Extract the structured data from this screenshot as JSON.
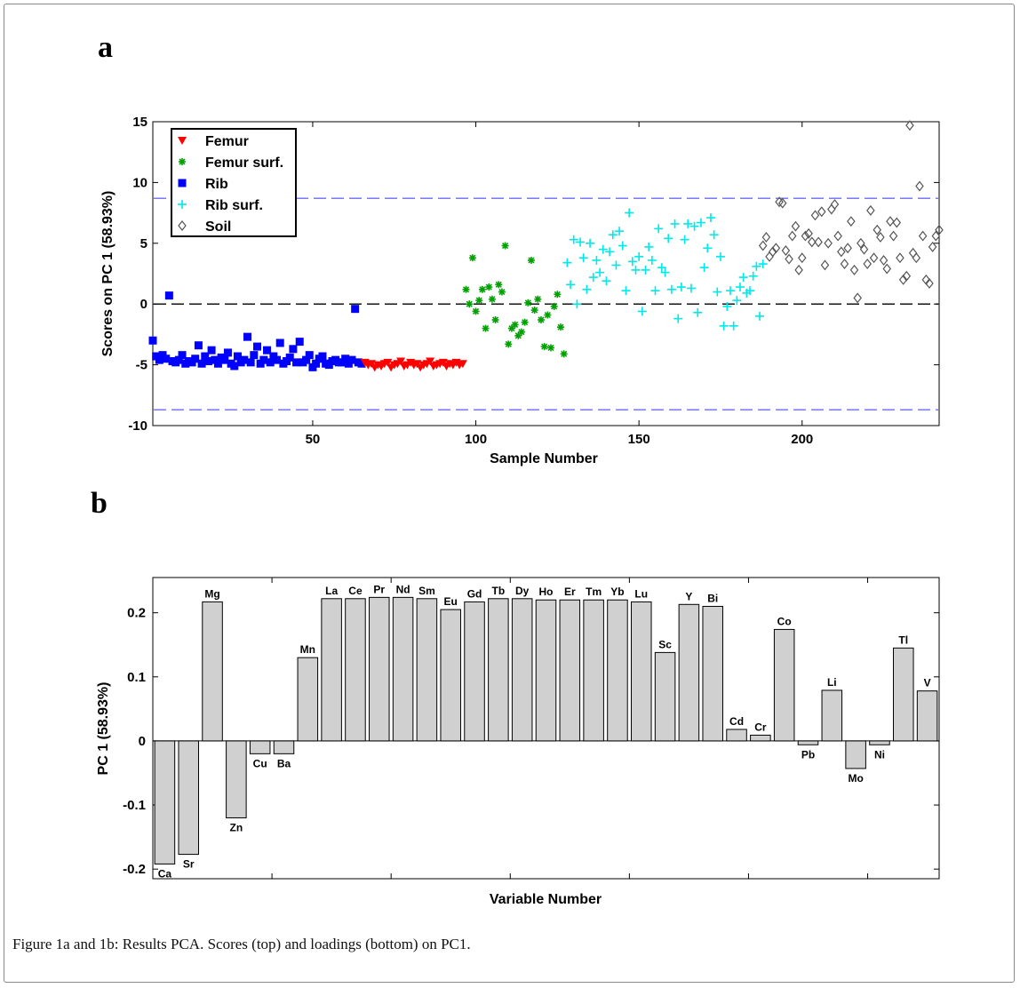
{
  "figure": {
    "caption": "Figure 1a and 1b: Results PCA. Scores (top) and loadings (bottom) on PC1."
  },
  "chart_data": [
    {
      "panel_label": "a",
      "type": "scatter",
      "xlabel": "Sample Number",
      "ylabel": "Scores on PC 1 (58.93%)",
      "xlim": [
        1,
        242
      ],
      "ylim": [
        -10,
        15
      ],
      "xticks": [
        50,
        100,
        150,
        200
      ],
      "yticks": [
        -10,
        -5,
        0,
        5,
        10,
        15
      ],
      "legend_position": "top-left",
      "reference_lines": [
        {
          "y": 8.7,
          "color": "#6a6aff",
          "style": "dashed"
        },
        {
          "y": -8.7,
          "color": "#6a6aff",
          "style": "dashed"
        },
        {
          "y": 0,
          "color": "#000000",
          "style": "dashed"
        }
      ],
      "series": [
        {
          "name": "Rib",
          "marker": "square",
          "color": "#0000ff",
          "x": [
            1,
            2,
            3,
            4,
            5,
            6,
            7,
            8,
            9,
            10,
            11,
            12,
            13,
            14,
            15,
            16,
            17,
            18,
            19,
            20,
            21,
            22,
            23,
            24,
            25,
            26,
            27,
            28,
            29,
            30,
            31,
            32,
            33,
            34,
            35,
            36,
            37,
            38,
            39,
            40,
            41,
            42,
            43,
            44,
            45,
            46,
            47,
            48,
            49,
            50,
            51,
            52,
            53,
            54,
            55,
            56,
            57,
            58,
            59,
            60,
            61,
            62,
            63,
            64,
            65
          ],
          "y": [
            -3.0,
            -4.3,
            -4.6,
            -4.2,
            -4.5,
            0.7,
            -4.7,
            -4.8,
            -4.6,
            -4.2,
            -4.9,
            -4.7,
            -4.8,
            -4.5,
            -3.4,
            -4.9,
            -4.3,
            -4.7,
            -3.8,
            -4.6,
            -4.9,
            -4.4,
            -4.6,
            -4.0,
            -4.9,
            -5.1,
            -4.3,
            -4.8,
            -4.6,
            -2.7,
            -4.8,
            -4.2,
            -3.5,
            -4.9,
            -4.6,
            -3.8,
            -4.8,
            -4.3,
            -4.6,
            -3.2,
            -4.9,
            -4.7,
            -4.4,
            -3.7,
            -4.8,
            -3.1,
            -4.8,
            -4.6,
            -4.2,
            -5.2,
            -4.9,
            -4.5,
            -4.3,
            -4.9,
            -5.0,
            -4.7,
            -4.6,
            -4.8,
            -4.8,
            -4.5,
            -4.9,
            -4.6,
            -0.4,
            -4.8,
            -4.9
          ]
        },
        {
          "name": "Femur",
          "marker": "triangle-down",
          "color": "#ff0000",
          "x": [
            66,
            67,
            68,
            69,
            70,
            71,
            72,
            73,
            74,
            75,
            76,
            77,
            78,
            79,
            80,
            81,
            82,
            83,
            84,
            85,
            86,
            87,
            88,
            89,
            90,
            91,
            92,
            93,
            94,
            95,
            96
          ],
          "y": [
            -4.8,
            -5.0,
            -4.9,
            -5.2,
            -5.0,
            -5.1,
            -4.9,
            -4.8,
            -5.2,
            -5.0,
            -4.9,
            -4.7,
            -5.1,
            -5.0,
            -4.8,
            -5.0,
            -4.9,
            -5.2,
            -5.0,
            -4.9,
            -4.7,
            -5.1,
            -5.0,
            -4.9,
            -4.8,
            -5.1,
            -4.9,
            -5.0,
            -4.8,
            -5.0,
            -4.9
          ]
        },
        {
          "name": "Femur surf.",
          "marker": "star",
          "color": "#00a000",
          "x": [
            97,
            98,
            99,
            100,
            101,
            102,
            103,
            104,
            105,
            106,
            107,
            108,
            109,
            110,
            111,
            112,
            113,
            114,
            115,
            116,
            117,
            118,
            119,
            120,
            121,
            122,
            123,
            124,
            125,
            126,
            127
          ],
          "y": [
            1.2,
            0.0,
            3.8,
            -0.6,
            0.3,
            1.2,
            -2.0,
            1.4,
            0.4,
            -1.3,
            1.6,
            1.0,
            4.8,
            -3.3,
            -2.0,
            -1.7,
            -2.6,
            -2.3,
            -1.5,
            0.1,
            3.6,
            -0.5,
            0.4,
            -1.3,
            -3.5,
            -0.9,
            -3.6,
            -0.2,
            0.8,
            -1.9,
            -4.1
          ]
        },
        {
          "name": "Rib surf.",
          "marker": "plus",
          "color": "#00e8e8",
          "x": [
            128,
            129,
            130,
            131,
            132,
            133,
            134,
            135,
            136,
            137,
            138,
            139,
            140,
            141,
            142,
            143,
            144,
            145,
            146,
            147,
            148,
            149,
            150,
            151,
            152,
            153,
            154,
            155,
            156,
            157,
            158,
            159,
            160,
            161,
            162,
            163,
            164,
            165,
            166,
            167,
            168,
            169,
            170,
            171,
            172,
            173,
            174,
            175,
            176,
            177,
            178,
            179,
            180,
            181,
            182,
            183,
            184,
            185,
            186,
            187,
            188
          ],
          "y": [
            3.4,
            1.6,
            5.3,
            0.0,
            5.1,
            3.8,
            1.2,
            5.0,
            2.2,
            3.6,
            2.6,
            4.5,
            1.9,
            4.3,
            5.7,
            3.2,
            6.0,
            4.8,
            1.1,
            7.5,
            3.5,
            2.8,
            3.9,
            -0.6,
            2.8,
            4.7,
            3.6,
            1.1,
            6.2,
            3.0,
            2.6,
            5.4,
            1.2,
            6.6,
            -1.2,
            1.4,
            5.3,
            6.6,
            1.3,
            6.4,
            -0.7,
            6.7,
            3.0,
            4.6,
            7.1,
            5.7,
            1.0,
            3.9,
            -1.8,
            -0.2,
            1.1,
            -1.8,
            0.3,
            1.4,
            2.2,
            0.9,
            1.1,
            2.3,
            3.1,
            -1.0,
            3.3
          ]
        },
        {
          "name": "Soil",
          "marker": "diamond-open",
          "color": "#555555",
          "x": [
            188,
            189,
            190,
            191,
            192,
            193,
            194,
            195,
            196,
            197,
            198,
            199,
            200,
            201,
            202,
            203,
            204,
            205,
            206,
            207,
            208,
            209,
            210,
            211,
            212,
            213,
            214,
            215,
            216,
            217,
            218,
            219,
            220,
            221,
            222,
            223,
            224,
            225,
            226,
            227,
            228,
            229,
            230,
            231,
            232,
            233,
            234,
            235,
            236,
            237,
            238,
            239,
            240,
            241,
            242
          ],
          "y": [
            4.8,
            5.5,
            3.9,
            4.3,
            4.6,
            8.4,
            8.3,
            4.4,
            3.7,
            5.6,
            6.4,
            2.8,
            3.8,
            5.6,
            5.8,
            5.1,
            7.3,
            5.1,
            7.6,
            3.2,
            5.0,
            7.8,
            8.2,
            5.6,
            4.3,
            3.3,
            4.6,
            6.8,
            2.8,
            0.5,
            5.0,
            4.5,
            3.3,
            7.7,
            3.8,
            6.1,
            5.5,
            3.6,
            2.9,
            6.8,
            5.6,
            6.7,
            3.8,
            2.0,
            2.3,
            14.7,
            4.2,
            3.8,
            9.7,
            5.6,
            2.0,
            1.7,
            4.7,
            5.6,
            6.1
          ]
        }
      ]
    },
    {
      "panel_label": "b",
      "type": "bar",
      "xlabel": "Variable Number",
      "ylabel": "PC 1 (58.93%)",
      "ylim": [
        -0.215,
        0.255
      ],
      "yticks": [
        -0.2,
        -0.1,
        0,
        0.1,
        0.2
      ],
      "ytick_labels": [
        "-0.2",
        "-0.1",
        "0",
        "0.1",
        "0.2"
      ],
      "bar_color": "#d0d0d0",
      "categories": [
        "Ca",
        "Sr",
        "Mg",
        "Zn",
        "Cu",
        "Ba",
        "Mn",
        "La",
        "Ce",
        "Pr",
        "Nd",
        "Sm",
        "Eu",
        "Gd",
        "Tb",
        "Dy",
        "Ho",
        "Er",
        "Tm",
        "Yb",
        "Lu",
        "Sc",
        "Y",
        "Bi",
        "Cd",
        "Cr",
        "Co",
        "Pb",
        "Li",
        "Mo",
        "Ni",
        "Tl",
        "V"
      ],
      "values": [
        -0.192,
        -0.177,
        0.217,
        -0.12,
        -0.02,
        -0.02,
        0.13,
        0.222,
        0.222,
        0.224,
        0.224,
        0.222,
        0.205,
        0.217,
        0.222,
        0.222,
        0.22,
        0.22,
        0.22,
        0.22,
        0.217,
        0.138,
        0.213,
        0.21,
        0.018,
        0.009,
        0.174,
        -0.006,
        0.079,
        -0.043,
        -0.006,
        0.145,
        0.078
      ]
    }
  ]
}
